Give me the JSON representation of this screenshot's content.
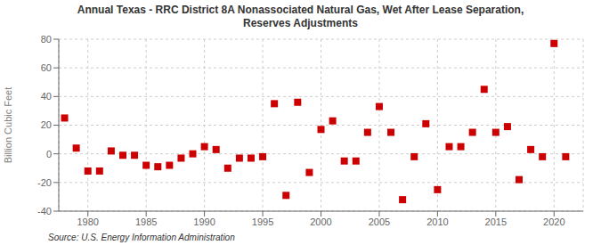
{
  "chart_data": {
    "type": "scatter",
    "title": "Annual Texas - RRC District 8A Nonassociated Natural Gas, Wet After Lease Separation,\nReserves Adjustments",
    "y_label": "Billion Cubic Feet",
    "annotations": [
      "Source: U.S. Energy Information Administration"
    ],
    "x": [
      1978,
      1979,
      1980,
      1981,
      1982,
      1983,
      1984,
      1985,
      1986,
      1987,
      1988,
      1989,
      1990,
      1991,
      1992,
      1993,
      1994,
      1995,
      1996,
      1997,
      1998,
      1999,
      2000,
      2001,
      2002,
      2003,
      2004,
      2005,
      2006,
      2007,
      2008,
      2009,
      2010,
      2011,
      2012,
      2013,
      2014,
      2015,
      2016,
      2017,
      2018,
      2019,
      2020,
      2021
    ],
    "values": [
      25,
      4,
      -12,
      -12,
      2,
      -1,
      -1,
      -8,
      -9,
      -8,
      -3,
      0,
      5,
      3,
      -10,
      -3,
      -3,
      -2,
      35,
      -29,
      36,
      -13,
      17,
      23,
      -5,
      -5,
      15,
      33,
      15,
      -32,
      -2,
      21,
      -25,
      5,
      5,
      15,
      45,
      15,
      19,
      -18,
      3,
      -2,
      77,
      -2
    ],
    "color": "#cc0000",
    "marker": "square",
    "xlim": [
      1977.5,
      2022.5
    ],
    "ylim": [
      -40,
      80
    ],
    "xticks": [
      1980,
      1985,
      1990,
      1995,
      2000,
      2005,
      2010,
      2015,
      2020
    ],
    "yticks": [
      -40,
      -20,
      0,
      20,
      40,
      60,
      80
    ],
    "grid": true
  }
}
